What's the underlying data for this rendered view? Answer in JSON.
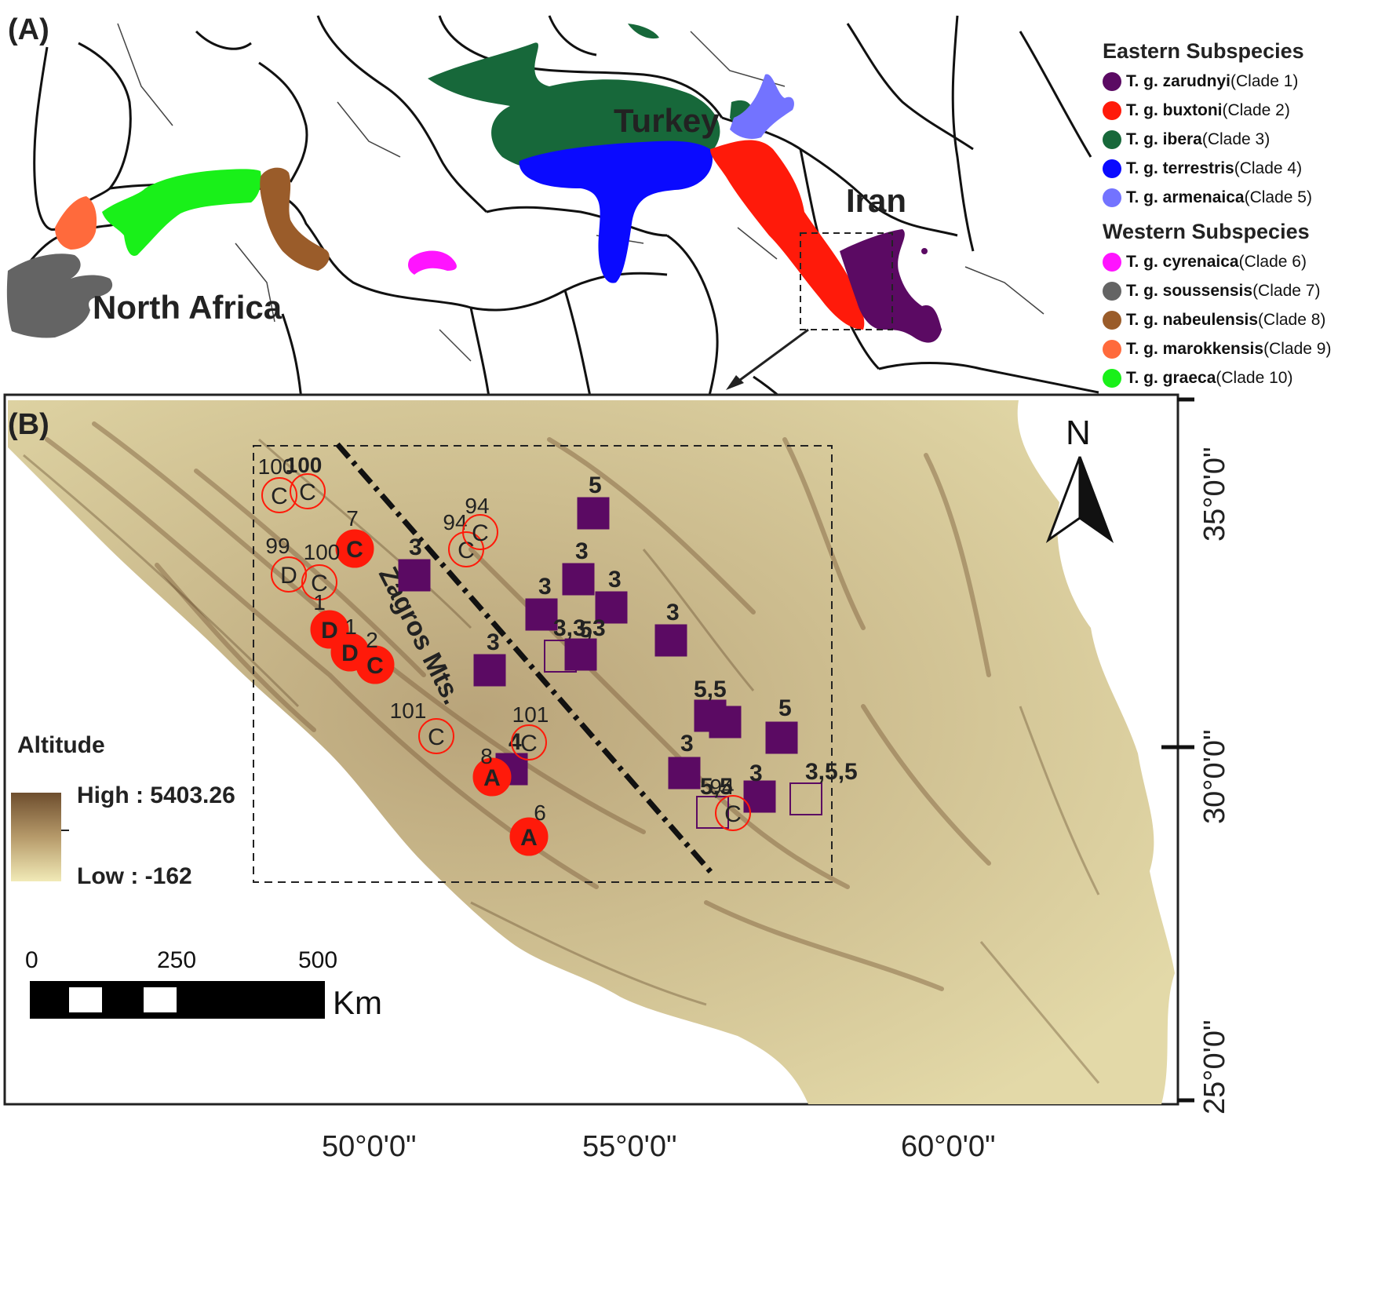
{
  "panel_a": {
    "label": "(A)",
    "regions": {
      "turkey": "Turkey",
      "iran": "Iran",
      "north_africa": "North Africa"
    },
    "legend": {
      "eastern_header": "Eastern Subspecies",
      "western_header": "Western Subspecies",
      "eastern": [
        {
          "name": "T. g. zarudnyi",
          "clade": "(Clade 1)",
          "color": "#5b0a63"
        },
        {
          "name": "T. g. buxtoni",
          "clade": "(Clade 2)",
          "color": "#ff1a0a"
        },
        {
          "name": "T. g. ibera",
          "clade": "(Clade 3)",
          "color": "#17683a"
        },
        {
          "name": "T. g. terrestris",
          "clade": "(Clade 4)",
          "color": "#0a0aff"
        },
        {
          "name": "T. g. armenaica",
          "clade": "(Clade 5)",
          "color": "#7373ff"
        }
      ],
      "western": [
        {
          "name": "T. g. cyrenaica",
          "clade": "(Clade 6)",
          "color": "#ff14ff"
        },
        {
          "name": "T. g. soussensis",
          "clade": "(Clade 7)",
          "color": "#646464"
        },
        {
          "name": "T. g. nabeulensis",
          "clade": "(Clade 8)",
          "color": "#9a5c2a"
        },
        {
          "name": "T. g. marokkensis",
          "clade": "(Clade 9)",
          "color": "#ff6a3c"
        },
        {
          "name": "T. g. graeca",
          "clade": "(Clade 10)",
          "color": "#19f019"
        }
      ]
    }
  },
  "panel_b": {
    "label": "(B)",
    "north": "N",
    "mountains": "Zagros Mts.",
    "altitude": {
      "title": "Altitude",
      "high": "High : 5403.26",
      "low": "Low : -162"
    },
    "scale": {
      "ticks": [
        "0",
        "250",
        "500"
      ],
      "unit": "Km"
    },
    "lon_labels": [
      "50°0'0\"",
      "55°0'0\"",
      "60°0'0\""
    ],
    "lat_labels": [
      "35°0'0\"",
      "30°0'0\"",
      "25°0'0\""
    ],
    "colors": {
      "clade1": "#5b0a63",
      "red": "#ff1a0a"
    },
    "circle_markers": [
      {
        "letter": "C",
        "num": "100",
        "filled": false
      },
      {
        "letter": "C",
        "num": "100",
        "filled": false
      },
      {
        "letter": "C",
        "num": "7",
        "filled": true
      },
      {
        "letter": "D",
        "num": "99",
        "filled": false
      },
      {
        "letter": "C",
        "num": "100",
        "filled": false
      },
      {
        "letter": "C",
        "num": "94",
        "filled": false
      },
      {
        "letter": "C",
        "num": "94",
        "filled": false
      },
      {
        "letter": "D",
        "num": "1",
        "filled": true
      },
      {
        "letter": "D",
        "num": "1",
        "filled": true
      },
      {
        "letter": "C",
        "num": "2",
        "filled": true
      },
      {
        "letter": "C",
        "num": "101",
        "filled": false
      },
      {
        "letter": "C",
        "num": "101",
        "filled": false
      },
      {
        "letter": "A",
        "num": "8",
        "filled": true
      },
      {
        "letter": "A",
        "num": "6",
        "filled": true
      },
      {
        "letter": "C",
        "num": "94",
        "filled": false
      }
    ],
    "square_markers": [
      {
        "num": "5",
        "filled": true
      },
      {
        "num": "3",
        "filled": true
      },
      {
        "num": "3",
        "filled": true
      },
      {
        "num": "3",
        "filled": true
      },
      {
        "num": "3",
        "filled": true
      },
      {
        "num": "3",
        "filled": true
      },
      {
        "num": "3,3,3",
        "filled": false
      },
      {
        "num": "5",
        "filled": true
      },
      {
        "num": "3",
        "filled": true
      },
      {
        "num": "5,5",
        "filled": true
      },
      {
        "num": "",
        "filled": true
      },
      {
        "num": "5",
        "filled": true
      },
      {
        "num": "3",
        "filled": true
      },
      {
        "num": "3",
        "filled": true
      },
      {
        "num": "3,5,5",
        "filled": false
      },
      {
        "num": "5,5",
        "filled": false
      },
      {
        "num": "4",
        "filled": true
      }
    ]
  }
}
